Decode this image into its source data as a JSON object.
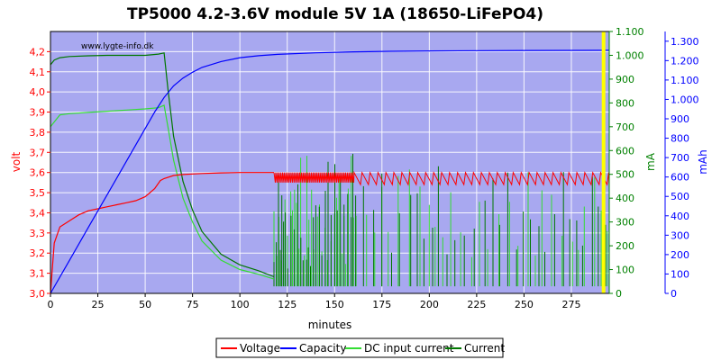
{
  "chart_data": {
    "type": "line",
    "title": "TP5000 4.2-3.6V module 5V 1A (18650-LiFePO4)",
    "watermark": "www.lygte-info.dk",
    "xlabel": "minutes",
    "xlim": [
      0,
      295
    ],
    "xticks": [
      0,
      25,
      50,
      75,
      100,
      125,
      150,
      175,
      200,
      225,
      250,
      275
    ],
    "y_left": {
      "label": "volt",
      "color": "#ff0000",
      "lim": [
        3.0,
        4.3
      ],
      "ticks": [
        "3,0",
        "3,1",
        "3,2",
        "3,3",
        "3,4",
        "3,5",
        "3,6",
        "3,7",
        "3,8",
        "3,9",
        "4,0",
        "4,1",
        "4,2"
      ],
      "tick_values": [
        3.0,
        3.1,
        3.2,
        3.3,
        3.4,
        3.5,
        3.6,
        3.7,
        3.8,
        3.9,
        4.0,
        4.1,
        4.2
      ]
    },
    "y_mid": {
      "label": "mA",
      "color": "#008000",
      "lim": [
        0,
        1100
      ],
      "ticks": [
        "0",
        "100",
        "200",
        "300",
        "400",
        "500",
        "600",
        "700",
        "800",
        "900",
        "1.000",
        "1.100"
      ],
      "tick_values": [
        0,
        100,
        200,
        300,
        400,
        500,
        600,
        700,
        800,
        900,
        1000,
        1100
      ]
    },
    "y_right": {
      "label": "mAh",
      "color": "#0000ff",
      "lim": [
        0,
        1350
      ],
      "ticks": [
        "0",
        "100",
        "200",
        "300",
        "400",
        "500",
        "600",
        "700",
        "800",
        "900",
        "1.000",
        "1.100",
        "1.200",
        "1.300"
      ],
      "tick_values": [
        0,
        100,
        200,
        300,
        400,
        500,
        600,
        700,
        800,
        900,
        1000,
        1100,
        1200,
        1300
      ]
    },
    "marker_x": 292,
    "background_color": "#a8a8f0",
    "grid": true,
    "legend_position": "bottom-center",
    "series": [
      {
        "name": "Voltage",
        "color": "#ff0000",
        "axis": "left",
        "x": [
          0,
          2,
          5,
          10,
          15,
          20,
          25,
          30,
          35,
          40,
          45,
          50,
          55,
          58,
          60,
          65,
          70,
          80,
          90,
          100,
          110,
          118
        ],
        "y": [
          3.0,
          3.25,
          3.33,
          3.36,
          3.39,
          3.41,
          3.42,
          3.43,
          3.44,
          3.45,
          3.46,
          3.48,
          3.52,
          3.56,
          3.57,
          3.585,
          3.59,
          3.595,
          3.598,
          3.6,
          3.6,
          3.6
        ],
        "oscillation": {
          "from": 118,
          "to": 295,
          "high": 3.6,
          "low": 3.54
        }
      },
      {
        "name": "Capacity",
        "color": "#0000ff",
        "axis": "right",
        "x": [
          0,
          10,
          20,
          30,
          40,
          50,
          55,
          60,
          65,
          70,
          75,
          80,
          90,
          100,
          110,
          120,
          140,
          160,
          180,
          200,
          250,
          295
        ],
        "y": [
          0,
          170,
          340,
          510,
          680,
          850,
          935,
          1010,
          1070,
          1110,
          1140,
          1165,
          1195,
          1215,
          1225,
          1232,
          1240,
          1245,
          1248,
          1250,
          1252,
          1253
        ]
      },
      {
        "name": "DC input current",
        "color": "#33dd33",
        "axis": "mid",
        "x": [
          0,
          2,
          5,
          10,
          20,
          30,
          40,
          50,
          57,
          60,
          62,
          65,
          70,
          75,
          80,
          90,
          100,
          110,
          118
        ],
        "y": [
          700,
          720,
          750,
          755,
          760,
          765,
          770,
          775,
          780,
          790,
          700,
          560,
          400,
          300,
          220,
          140,
          100,
          80,
          60
        ],
        "spikes": {
          "from": 118,
          "to": 295,
          "max": 600
        }
      },
      {
        "name": "Current",
        "color": "#007700",
        "axis": "mid",
        "x": [
          0,
          2,
          5,
          10,
          20,
          30,
          40,
          50,
          57,
          60,
          62,
          65,
          70,
          75,
          80,
          90,
          100,
          110,
          118
        ],
        "y": [
          960,
          980,
          990,
          995,
          998,
          1000,
          1000,
          1000,
          1005,
          1010,
          860,
          660,
          470,
          350,
          260,
          165,
          120,
          95,
          70
        ],
        "spikes": {
          "from": 118,
          "to": 295,
          "max": 600
        }
      }
    ]
  }
}
